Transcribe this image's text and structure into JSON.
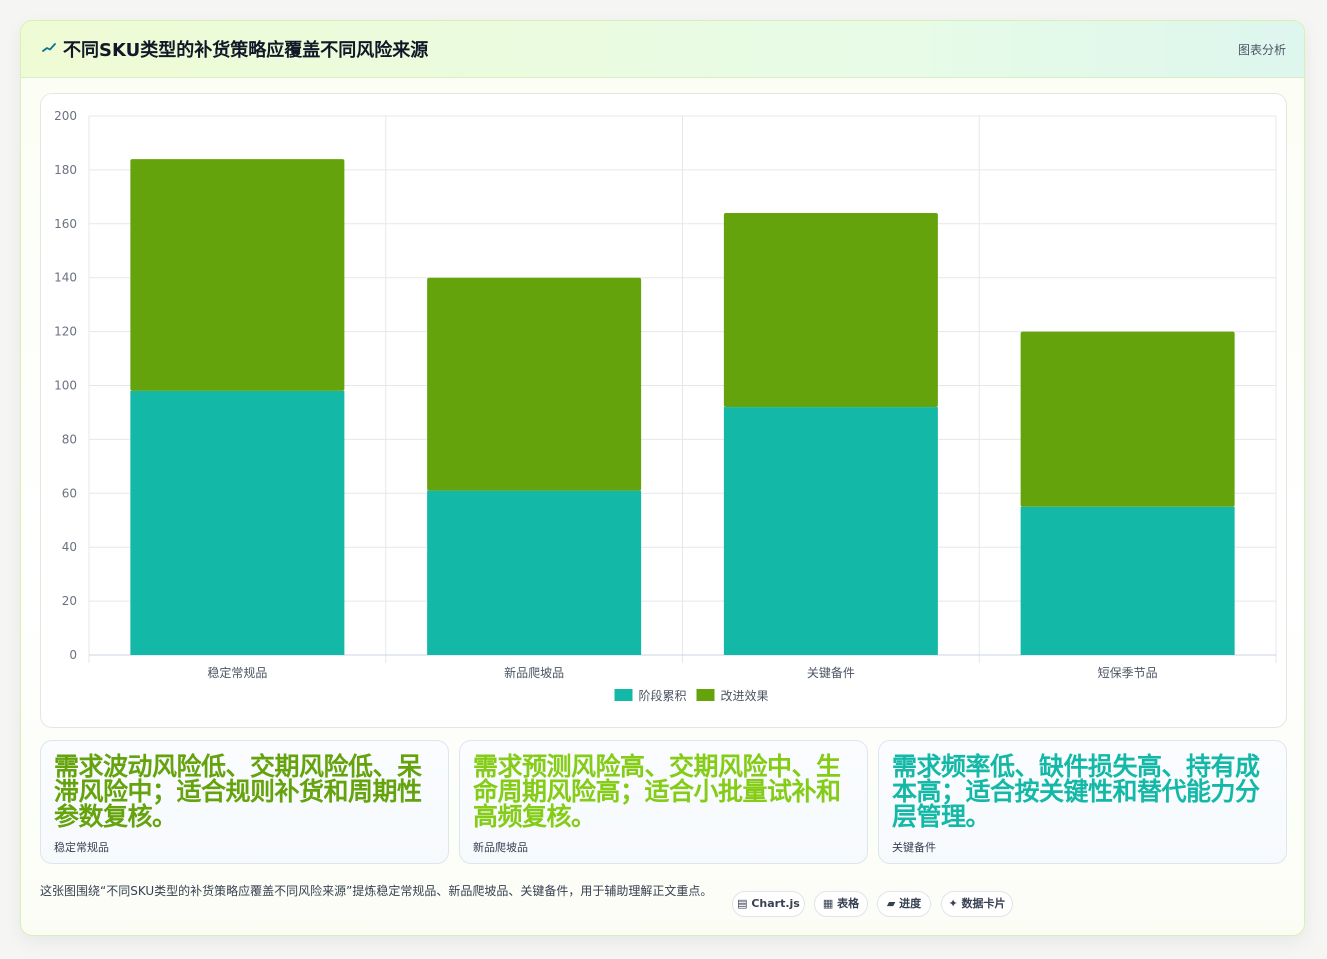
{
  "header": {
    "icon": "trend-line-icon",
    "title": "不同SKU类型的补货策略应覆盖不同风险来源",
    "badge": "图表分析"
  },
  "colors": {
    "series1": "#14b8a6",
    "series2": "#65a30d",
    "accent_lime": "#65a30d",
    "accent_teal": "#14b8a6"
  },
  "chart_data": {
    "type": "bar",
    "stacked": true,
    "categories": [
      "稳定常规品",
      "新品爬坡品",
      "关键备件",
      "短保季节品"
    ],
    "series": [
      {
        "name": "阶段累积",
        "values": [
          98,
          61,
          92,
          55
        ]
      },
      {
        "name": "改进效果",
        "values": [
          86,
          79,
          72,
          65
        ]
      }
    ],
    "ylim": [
      0,
      200
    ],
    "yticks": [
      0,
      20,
      40,
      60,
      80,
      100,
      120,
      140,
      160,
      180,
      200
    ],
    "grid": true,
    "legend": "bottom-center"
  },
  "cards": [
    {
      "value": "需求波动风险低、交期风险低、呆滞风险中；适合规则补货和周期性参数复核。",
      "label": "稳定常规品",
      "color": "#65a30d"
    },
    {
      "value": "需求预测风险高、交期风险中、生命周期风险高；适合小批量试补和高频复核。",
      "label": "新品爬坡品",
      "color": "#84cc16"
    },
    {
      "value": "需求频率低、缺件损失高、持有成本高；适合按关键性和替代能力分层管理。",
      "label": "关键备件",
      "color": "#14b8a6"
    }
  ],
  "footer": {
    "description": "这张图围绕“不同SKU类型的补货策略应覆盖不同风险来源”提炼稳定常规品、新品爬坡品、关键备件，用于辅助理解正文重点。",
    "tags": [
      "▤ Chart.js",
      "▦ 表格",
      "▰ 进度",
      "✦ 数据卡片"
    ]
  }
}
